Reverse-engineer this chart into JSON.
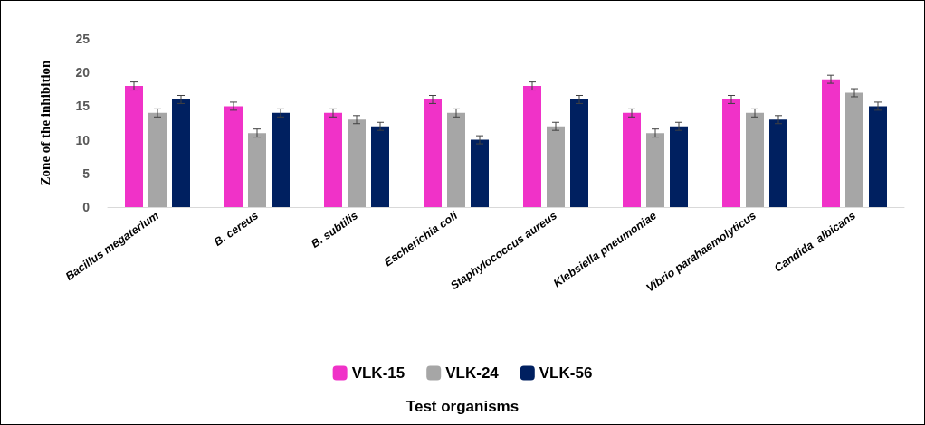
{
  "chart_data": {
    "type": "bar",
    "annotations": [
      "Test organisms"
    ],
    "ylabel": "Zone of the inhibition",
    "categories": [
      "Bacillus megaterium",
      "B. cereus",
      "B. subtilis",
      "Escherichia coli",
      "Staphylococcus aureus",
      "Klebsiella pneumoniae",
      "Vibrio parahaemolyticus",
      "Candida  albicans"
    ],
    "series": [
      {
        "name": "VLK-15",
        "color": "#f032c8",
        "values": [
          18,
          15,
          14,
          16,
          18,
          14,
          16,
          19
        ],
        "errors": [
          0.6,
          0.6,
          0.6,
          0.6,
          0.6,
          0.6,
          0.6,
          0.6
        ]
      },
      {
        "name": "VLK-24",
        "color": "#a6a6a6",
        "values": [
          14,
          11,
          13,
          14,
          12,
          11,
          14,
          17
        ],
        "errors": [
          0.6,
          0.6,
          0.6,
          0.6,
          0.6,
          0.6,
          0.6,
          0.6
        ]
      },
      {
        "name": "VLK-56",
        "color": "#002060",
        "values": [
          16,
          14,
          12,
          10,
          16,
          12,
          13,
          15
        ],
        "errors": [
          0.6,
          0.6,
          0.6,
          0.6,
          0.6,
          0.6,
          0.6,
          0.6
        ]
      }
    ],
    "ylim": [
      0,
      25
    ],
    "yticks": [
      0,
      5,
      10,
      15,
      20,
      25
    ],
    "grid": false,
    "legend": "bottom"
  }
}
